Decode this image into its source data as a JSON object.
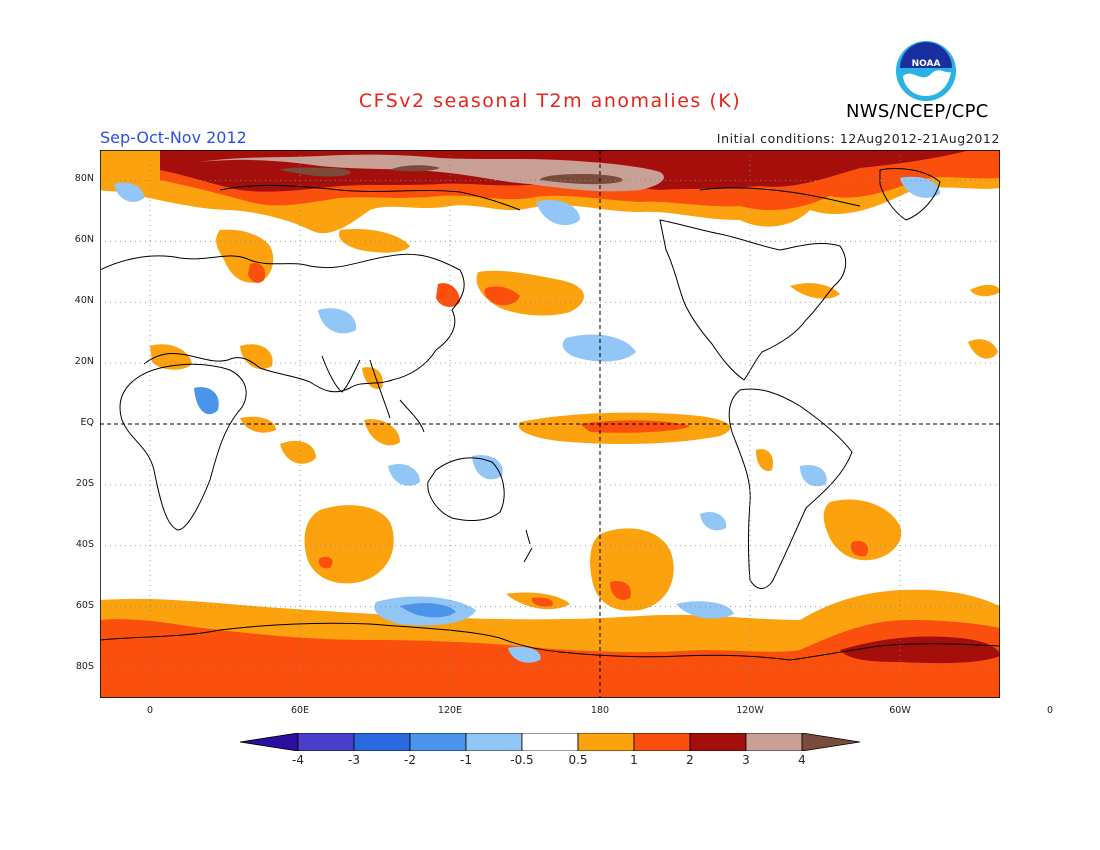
{
  "title": "CFSv2 seasonal T2m anomalies (K)",
  "season": "Sep-Oct-Nov 2012",
  "initial_conditions": "Initial conditions: 12Aug2012-21Aug2012",
  "agency": "NWS/NCEP/CPC",
  "logo_text": "NOAA",
  "lat_labels": [
    "80N",
    "60N",
    "40N",
    "20N",
    "EQ",
    "20S",
    "40S",
    "60S",
    "80S"
  ],
  "lon_labels": [
    "0",
    "60E",
    "120E",
    "180",
    "120W",
    "60W",
    "0"
  ],
  "colorbar": {
    "labels": [
      "-4",
      "-3",
      "-2",
      "-1",
      "-0.5",
      "0.5",
      "1",
      "2",
      "3",
      "4"
    ],
    "colors": [
      "#2a0fa0",
      "#4a3fcc",
      "#2a6ae0",
      "#4a94ec",
      "#92c6f6",
      "#ffffff",
      "#fba20e",
      "#fb4f0e",
      "#a50f0b",
      "#c9a096",
      "#7a4a3a"
    ]
  },
  "map_colors": {
    "warm_05": "#fba20e",
    "warm_1": "#fb4f0e",
    "warm_2": "#a50f0b",
    "warm_3": "#c9a096",
    "warm_4": "#7a4a3a",
    "cool_05": "#92c6f6",
    "cool_1": "#4a94ec",
    "cool_2": "#2a6ae0"
  }
}
